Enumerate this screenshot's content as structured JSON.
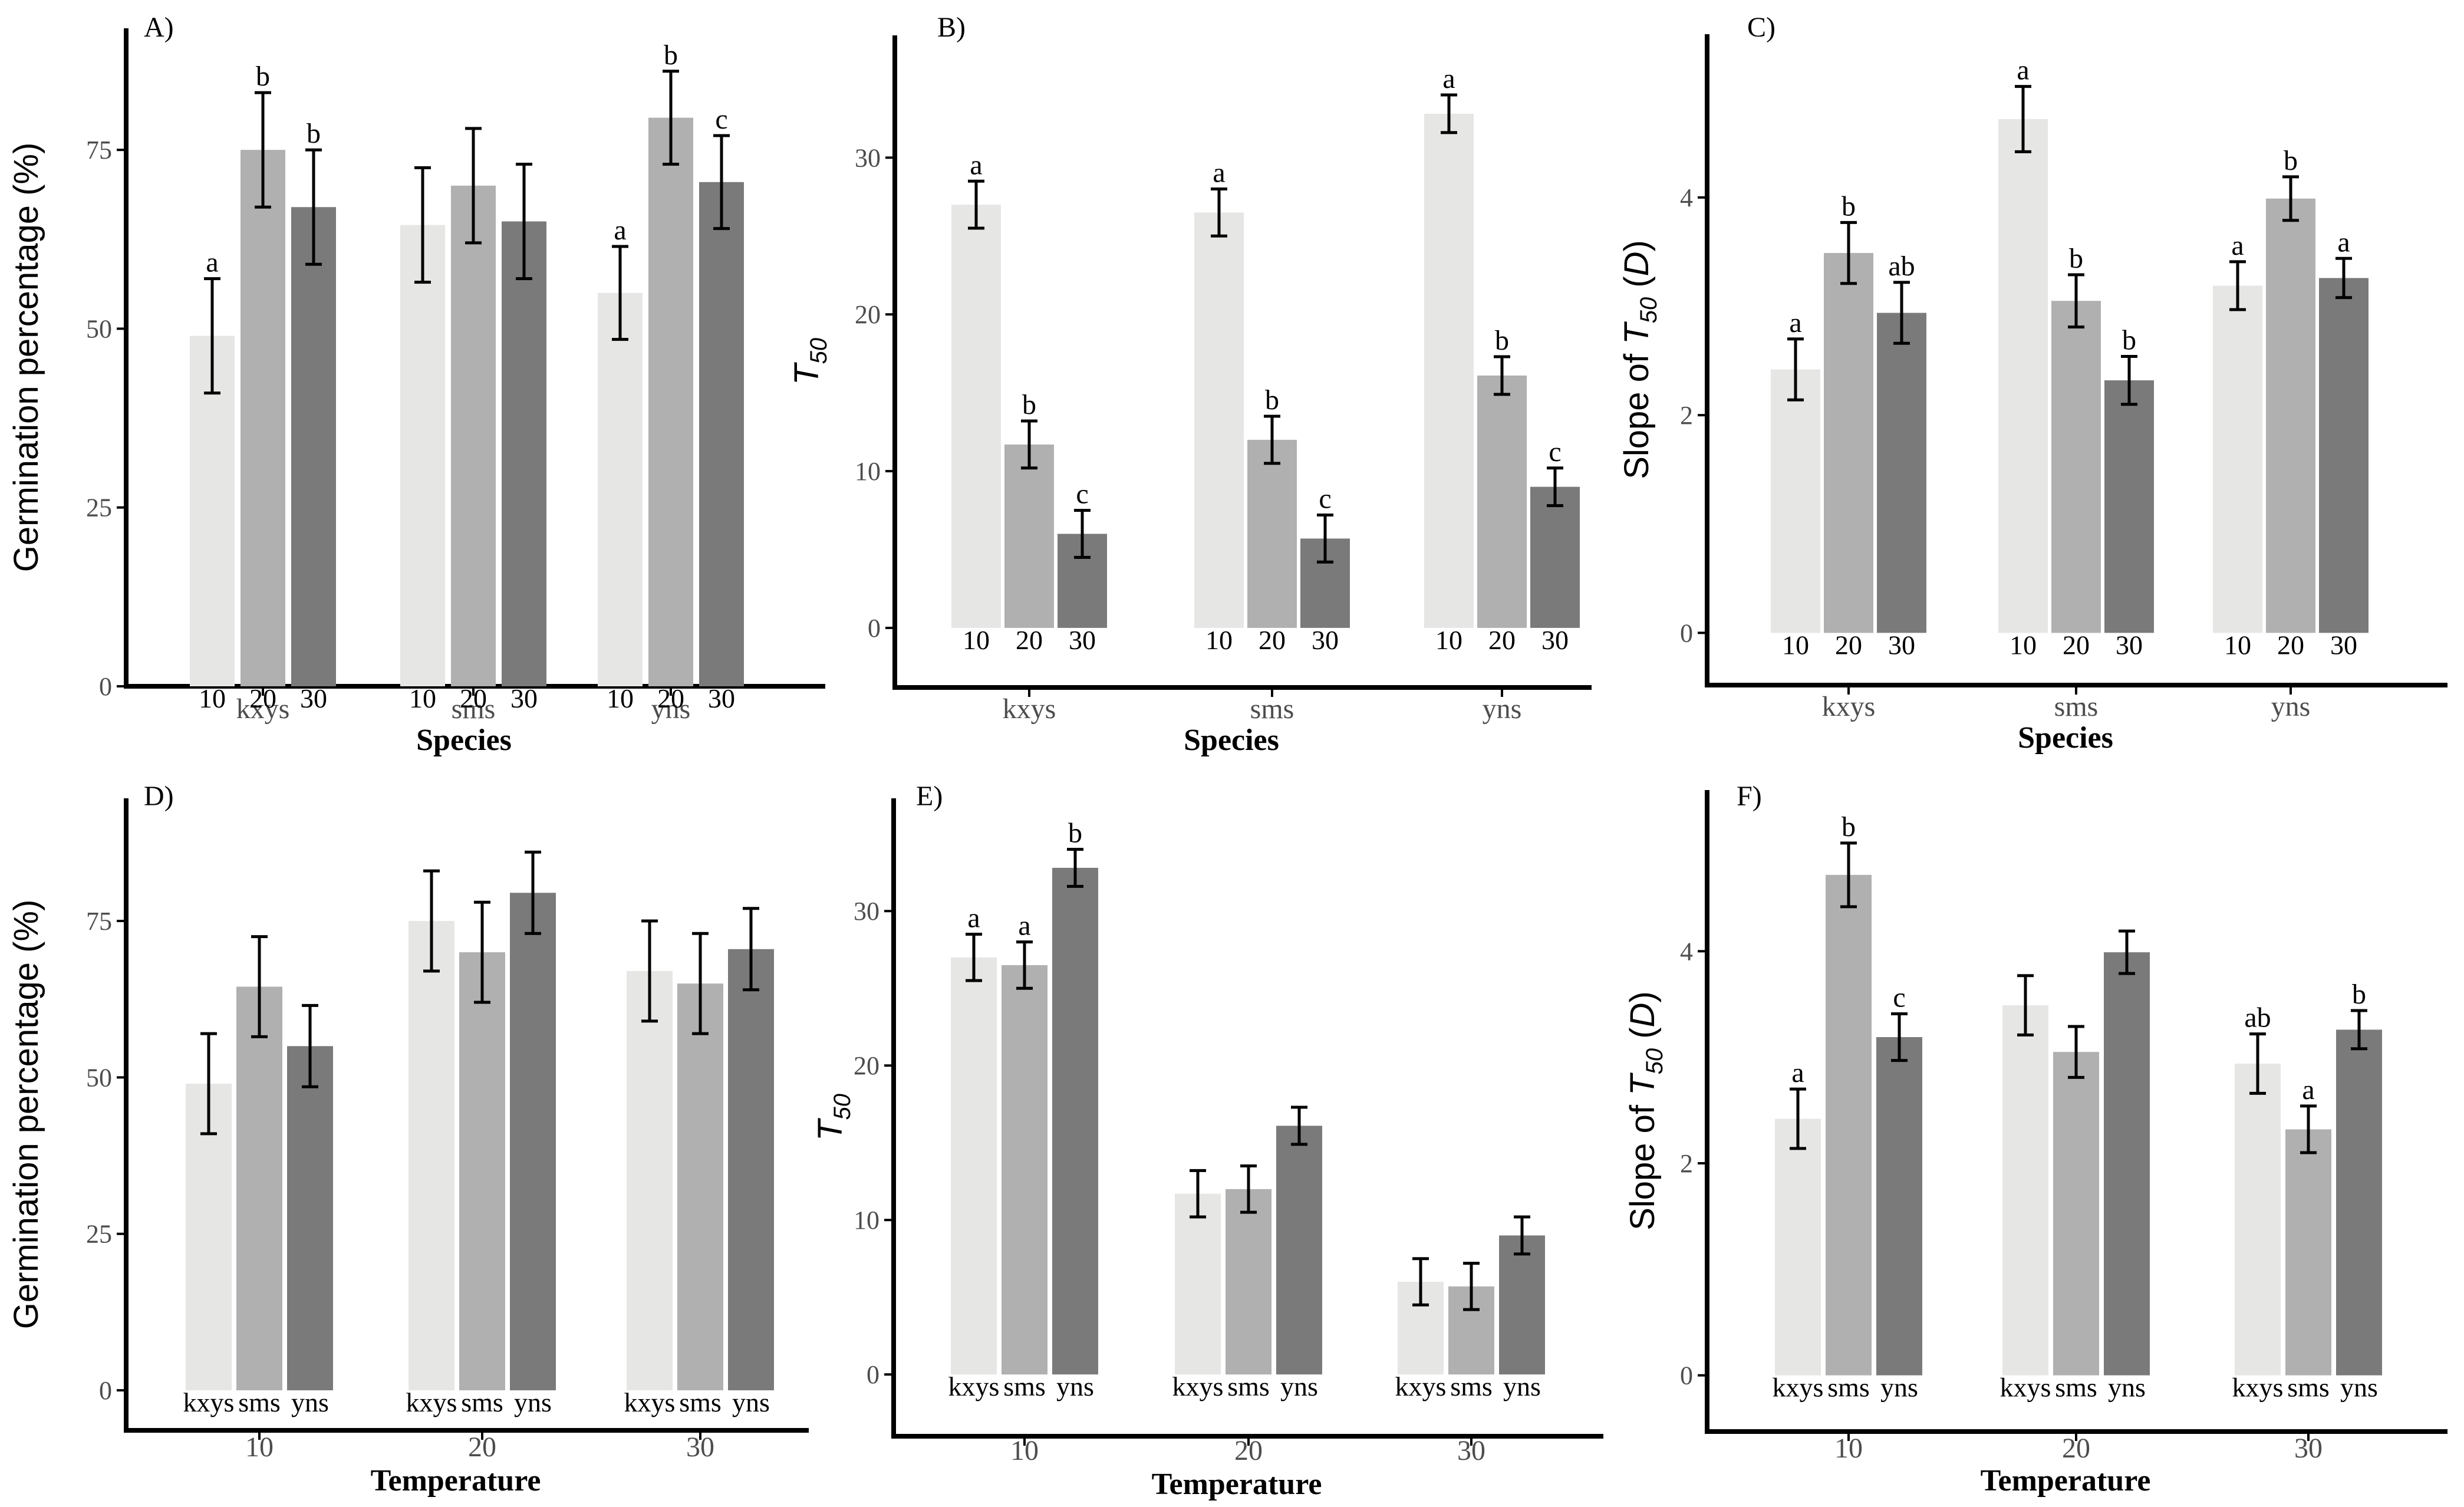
{
  "colors": {
    "bar_light": "#e6e6e5",
    "bar_mid": "#b0b0b0",
    "bar_dark": "#7a7a7b",
    "axis": "#000000",
    "tick_text": "#4d4d4d"
  },
  "chart_data": [
    {
      "panel": "A)",
      "type": "bar",
      "xlabel": "Species",
      "ylabel": "Germination percentage (%)",
      "ylim": [
        0,
        92
      ],
      "yticks": [
        "0",
        "25",
        "50",
        "75"
      ],
      "groups": [
        {
          "label": "kxys",
          "bars": [
            {
              "label": "10",
              "value": 49,
              "error": 8,
              "letter": "a"
            },
            {
              "label": "20",
              "value": 75,
              "error": 8,
              "letter": "b"
            },
            {
              "label": "30",
              "value": 67,
              "error": 8,
              "letter": "b"
            }
          ]
        },
        {
          "label": "sms",
          "bars": [
            {
              "label": "10",
              "value": 64.5,
              "error": 8,
              "letter": ""
            },
            {
              "label": "20",
              "value": 70,
              "error": 8,
              "letter": ""
            },
            {
              "label": "30",
              "value": 65,
              "error": 8,
              "letter": ""
            }
          ]
        },
        {
          "label": "yns",
          "bars": [
            {
              "label": "10",
              "value": 55,
              "error": 6.5,
              "letter": "a"
            },
            {
              "label": "20",
              "value": 79.5,
              "error": 6.5,
              "letter": "b"
            },
            {
              "label": "30",
              "value": 70.5,
              "error": 6.5,
              "letter": "c"
            }
          ]
        }
      ]
    },
    {
      "panel": "B)",
      "type": "bar",
      "xlabel": "Species",
      "ylabel": "T50",
      "ylabel_main": "T",
      "ylabel_sub": "50",
      "ylim": [
        -3.8,
        37.8
      ],
      "yticks": [
        "0",
        "10",
        "20",
        "30"
      ],
      "groups": [
        {
          "label": "kxys",
          "bars": [
            {
              "label": "10",
              "value": 27,
              "error": 1.5,
              "letter": "a"
            },
            {
              "label": "20",
              "value": 11.7,
              "error": 1.5,
              "letter": "b"
            },
            {
              "label": "30",
              "value": 6,
              "error": 1.5,
              "letter": "c"
            }
          ]
        },
        {
          "label": "sms",
          "bars": [
            {
              "label": "10",
              "value": 26.5,
              "error": 1.5,
              "letter": "a"
            },
            {
              "label": "20",
              "value": 12,
              "error": 1.5,
              "letter": "b"
            },
            {
              "label": "30",
              "value": 5.7,
              "error": 1.5,
              "letter": "c"
            }
          ]
        },
        {
          "label": "yns",
          "bars": [
            {
              "label": "10",
              "value": 32.8,
              "error": 1.2,
              "letter": "a"
            },
            {
              "label": "20",
              "value": 16.1,
              "error": 1.2,
              "letter": "b"
            },
            {
              "label": "30",
              "value": 9,
              "error": 1.2,
              "letter": "c"
            }
          ]
        }
      ]
    },
    {
      "panel": "C)",
      "type": "bar",
      "xlabel": "Species",
      "ylabel": "Slope of T50 (D)",
      "ylabel_pre": "Slope of ",
      "ylabel_main": "T",
      "ylabel_sub": "50",
      "ylabel_post": " (",
      "ylabel_italic": "D",
      "ylabel_close": ")",
      "ylim": [
        -0.48,
        5.5
      ],
      "yticks": [
        "0",
        "2",
        "4"
      ],
      "groups": [
        {
          "label": "kxys",
          "bars": [
            {
              "label": "10",
              "value": 2.42,
              "error": 0.28,
              "letter": "a"
            },
            {
              "label": "20",
              "value": 3.49,
              "error": 0.28,
              "letter": "b"
            },
            {
              "label": "30",
              "value": 2.94,
              "error": 0.28,
              "letter": "ab"
            }
          ]
        },
        {
          "label": "sms",
          "bars": [
            {
              "label": "10",
              "value": 4.72,
              "error": 0.3,
              "letter": "a"
            },
            {
              "label": "20",
              "value": 3.05,
              "error": 0.24,
              "letter": "b"
            },
            {
              "label": "30",
              "value": 2.32,
              "error": 0.22,
              "letter": "b"
            }
          ]
        },
        {
          "label": "yns",
          "bars": [
            {
              "label": "10",
              "value": 3.19,
              "error": 0.22,
              "letter": "a"
            },
            {
              "label": "20",
              "value": 3.99,
              "error": 0.2,
              "letter": "b"
            },
            {
              "label": "30",
              "value": 3.26,
              "error": 0.18,
              "letter": "a"
            }
          ]
        }
      ]
    },
    {
      "panel": "D)",
      "type": "bar",
      "xlabel": "Temperature",
      "ylabel": "Germination percentage (%)",
      "ylim": [
        -6.4,
        94.6
      ],
      "yticks": [
        "0",
        "25",
        "50",
        "75"
      ],
      "groups": [
        {
          "label": "10",
          "bars": [
            {
              "label": "kxys",
              "value": 49,
              "error": 8,
              "letter": ""
            },
            {
              "label": "sms",
              "value": 64.5,
              "error": 8,
              "letter": ""
            },
            {
              "label": "yns",
              "value": 55,
              "error": 6.5,
              "letter": ""
            }
          ]
        },
        {
          "label": "20",
          "bars": [
            {
              "label": "kxys",
              "value": 75,
              "error": 8,
              "letter": ""
            },
            {
              "label": "sms",
              "value": 70,
              "error": 8,
              "letter": ""
            },
            {
              "label": "yns",
              "value": 79.5,
              "error": 6.5,
              "letter": ""
            }
          ]
        },
        {
          "label": "30",
          "bars": [
            {
              "label": "kxys",
              "value": 67,
              "error": 8,
              "letter": ""
            },
            {
              "label": "sms",
              "value": 65,
              "error": 8,
              "letter": ""
            },
            {
              "label": "yns",
              "value": 70.5,
              "error": 6.5,
              "letter": ""
            }
          ]
        }
      ]
    },
    {
      "panel": "E)",
      "type": "bar",
      "xlabel": "Temperature",
      "ylabel": "T50",
      "ylabel_main": "T",
      "ylabel_sub": "50",
      "ylim": [
        -4.0,
        37.3
      ],
      "yticks": [
        "0",
        "10",
        "20",
        "30"
      ],
      "groups": [
        {
          "label": "10",
          "bars": [
            {
              "label": "kxys",
              "value": 27,
              "error": 1.5,
              "letter": "a"
            },
            {
              "label": "sms",
              "value": 26.5,
              "error": 1.5,
              "letter": "a"
            },
            {
              "label": "yns",
              "value": 32.8,
              "error": 1.2,
              "letter": "b"
            }
          ]
        },
        {
          "label": "20",
          "bars": [
            {
              "label": "kxys",
              "value": 11.7,
              "error": 1.5,
              "letter": ""
            },
            {
              "label": "sms",
              "value": 12,
              "error": 1.5,
              "letter": ""
            },
            {
              "label": "yns",
              "value": 16.1,
              "error": 1.2,
              "letter": ""
            }
          ]
        },
        {
          "label": "30",
          "bars": [
            {
              "label": "kxys",
              "value": 6,
              "error": 1.5,
              "letter": ""
            },
            {
              "label": "sms",
              "value": 5.7,
              "error": 1.5,
              "letter": ""
            },
            {
              "label": "yns",
              "value": 9,
              "error": 1.2,
              "letter": ""
            }
          ]
        }
      ]
    },
    {
      "panel": "F)",
      "type": "bar",
      "xlabel": "Temperature",
      "ylabel": "Slope of T50 (D)",
      "ylabel_pre": "Slope of ",
      "ylabel_main": "T",
      "ylabel_sub": "50",
      "ylabel_post": " (",
      "ylabel_italic": "D",
      "ylabel_close": ")",
      "ylim": [
        -0.53,
        5.52
      ],
      "yticks": [
        "0",
        "2",
        "4"
      ],
      "groups": [
        {
          "label": "10",
          "bars": [
            {
              "label": "kxys",
              "value": 2.42,
              "error": 0.28,
              "letter": "a"
            },
            {
              "label": "sms",
              "value": 4.72,
              "error": 0.3,
              "letter": "b"
            },
            {
              "label": "yns",
              "value": 3.19,
              "error": 0.22,
              "letter": "c"
            }
          ]
        },
        {
          "label": "20",
          "bars": [
            {
              "label": "kxys",
              "value": 3.49,
              "error": 0.28,
              "letter": ""
            },
            {
              "label": "sms",
              "value": 3.05,
              "error": 0.24,
              "letter": ""
            },
            {
              "label": "yns",
              "value": 3.99,
              "error": 0.2,
              "letter": ""
            }
          ]
        },
        {
          "label": "30",
          "bars": [
            {
              "label": "kxys",
              "value": 2.94,
              "error": 0.28,
              "letter": "ab"
            },
            {
              "label": "sms",
              "value": 2.32,
              "error": 0.22,
              "letter": "a"
            },
            {
              "label": "yns",
              "value": 3.26,
              "error": 0.18,
              "letter": "b"
            }
          ]
        }
      ]
    }
  ]
}
